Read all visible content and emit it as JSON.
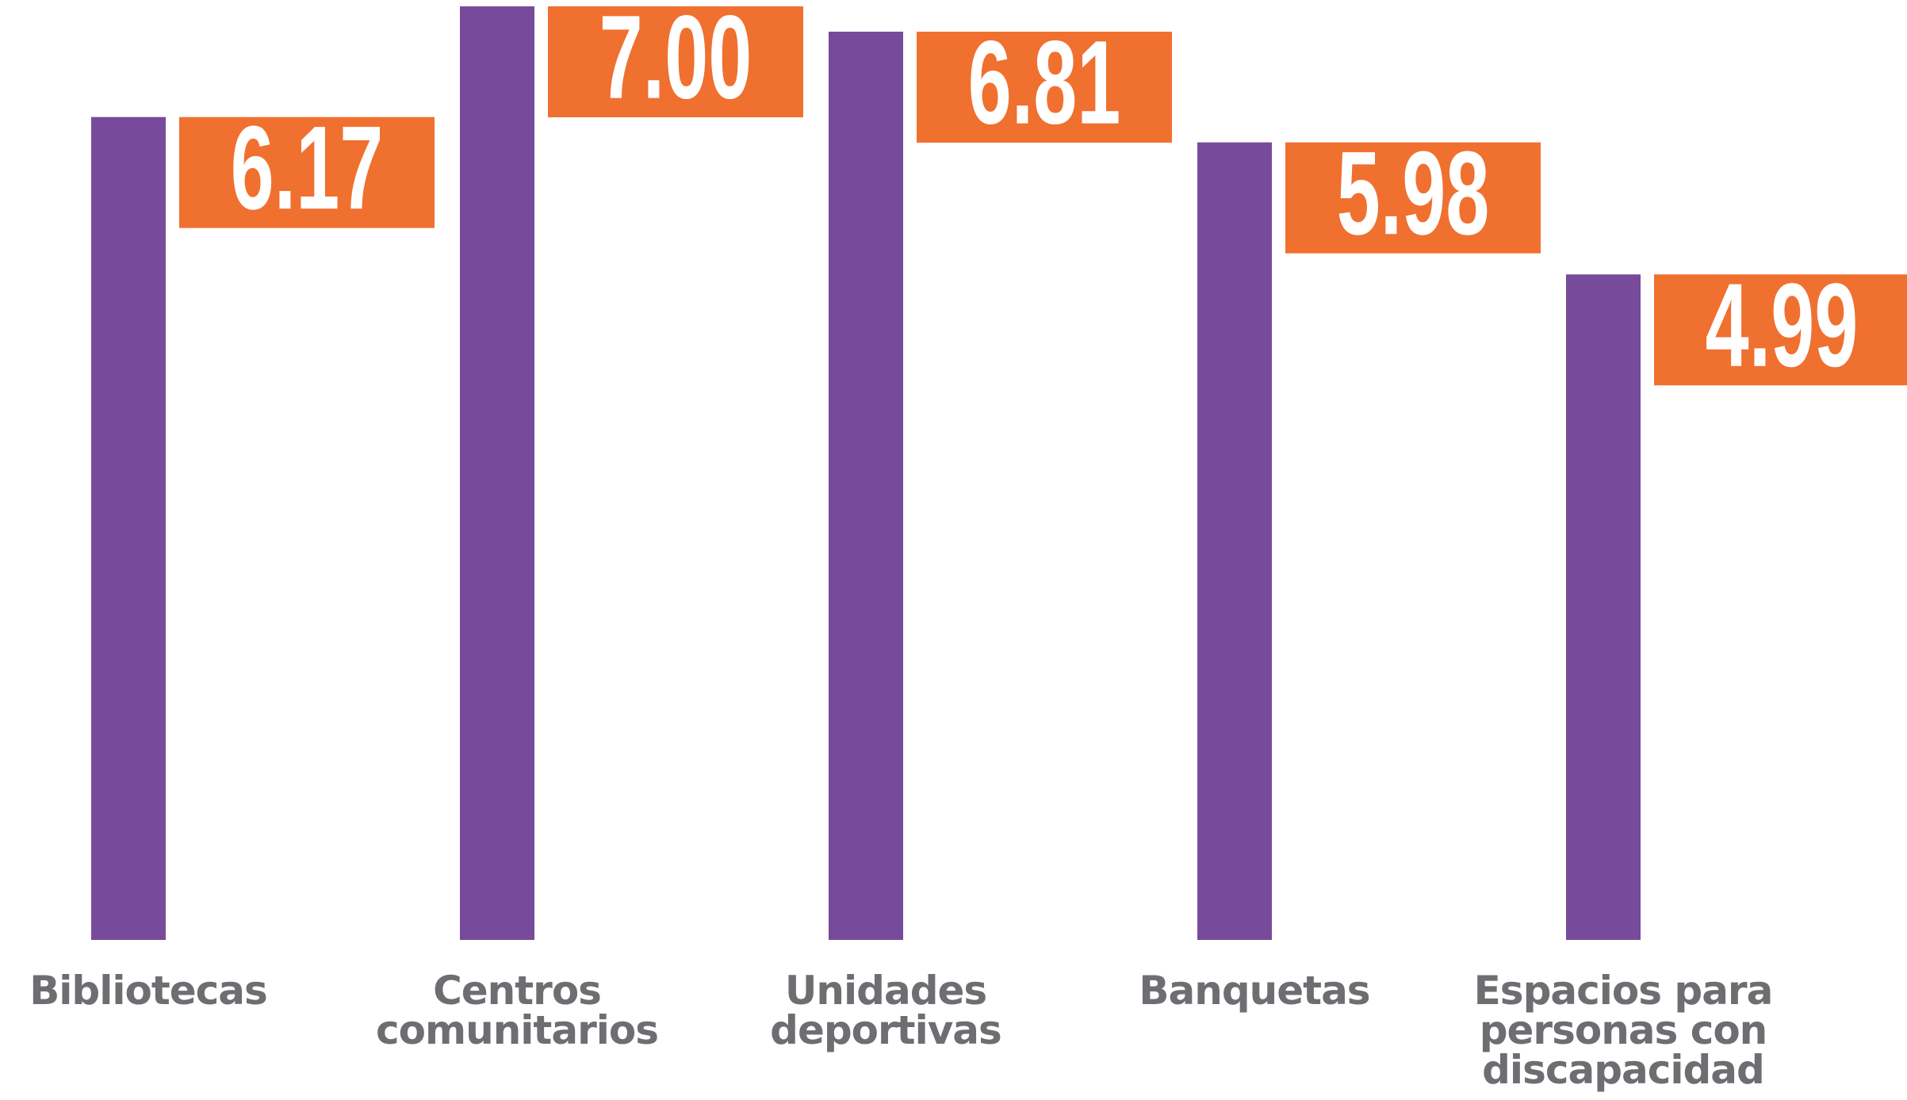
{
  "chart_data": {
    "type": "bar",
    "categories": [
      "Bibliotecas",
      "Centros\ncomunitarios",
      "Unidades\ndeportivas",
      "Banquetas",
      "Espacios para\npersonas con\ndiscapacidad"
    ],
    "values": [
      6.17,
      7,
      6.81,
      5.98,
      4.99
    ],
    "value_labels": [
      "6.17",
      "7.00",
      "6.81",
      "5.98",
      "4.99"
    ],
    "color": "#784a9b",
    "label_color": "#f07030",
    "ylim": [
      0,
      7
    ]
  }
}
